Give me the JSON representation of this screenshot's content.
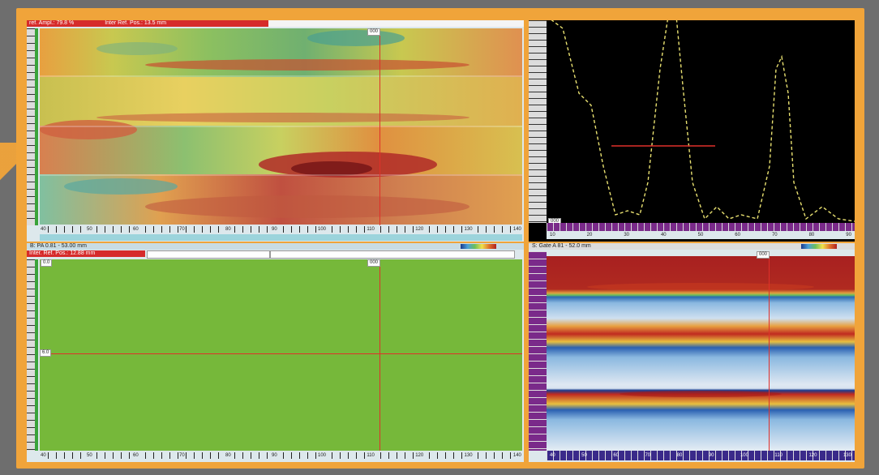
{
  "top_left": {
    "header_amplitude": "ref. Ampl.: 79.8 %",
    "header_position": "Inter Ref. Pos.: 13.5 mm",
    "cursor_label": "000",
    "side_marker": "000",
    "x_ticks": [
      "40",
      "50",
      "60",
      "70",
      "80",
      "90",
      "100",
      "110",
      "120",
      "130",
      "140"
    ]
  },
  "top_right": {
    "corner_label": "000",
    "x_ticks": [
      "10",
      "20",
      "30",
      "40",
      "50",
      "60",
      "70",
      "80",
      "90"
    ],
    "gate_label": "80"
  },
  "bottom_left": {
    "title": "B: PA 0.81 - 53.00 mm",
    "header_position": "Inter. Ref. Pos.: 12.88 mm",
    "cursor_label_top": "000",
    "cursor_label_left": "0.0",
    "side_marker": "6.0",
    "x_ticks": [
      "40",
      "50",
      "60",
      "70",
      "80",
      "90",
      "100",
      "110",
      "120",
      "130",
      "140"
    ]
  },
  "bottom_right": {
    "title": "S: Gate A 81 - 52.0 mm",
    "cursor_label": "000",
    "x_ticks": [
      "40",
      "50",
      "60",
      "70",
      "80",
      "90",
      "100",
      "110",
      "120",
      "130"
    ]
  },
  "colors": {
    "frame": "#f0a43a",
    "cursor": "#e0302a",
    "ascan_trace": "#e8e070",
    "bscan_green": "#76b83a"
  }
}
